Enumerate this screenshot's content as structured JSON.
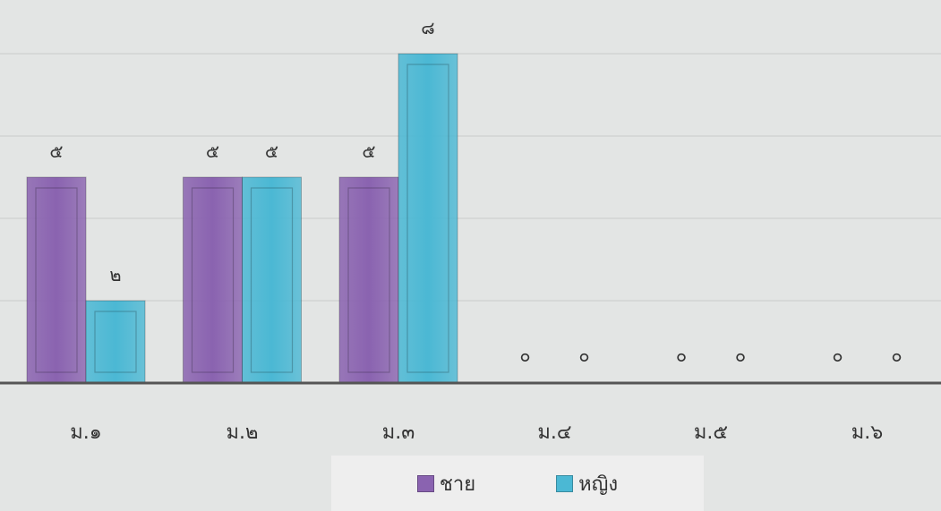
{
  "chart_data": {
    "type": "bar",
    "categories": [
      "ม.๑",
      "ม.๒",
      "ม.๓",
      "ม.๔",
      "ม.๕",
      "ม.๖"
    ],
    "series": [
      {
        "name": "ชาย",
        "values": [
          5,
          5,
          5,
          0,
          0,
          0
        ],
        "value_labels": [
          "๕",
          "๕",
          "๕",
          "๐",
          "๐",
          "๐"
        ],
        "color": "#8a63b0"
      },
      {
        "name": "หญิง",
        "values": [
          2,
          5,
          8,
          0,
          0,
          0
        ],
        "value_labels": [
          "๒",
          "๕",
          "๘",
          "๐",
          "๐",
          "๐"
        ],
        "color": "#4bb8d4"
      }
    ],
    "title": "",
    "xlabel": "",
    "ylabel": "",
    "ylim": [
      0,
      8
    ],
    "grid": true,
    "legend_position": "bottom",
    "bar_style": "beveled"
  }
}
